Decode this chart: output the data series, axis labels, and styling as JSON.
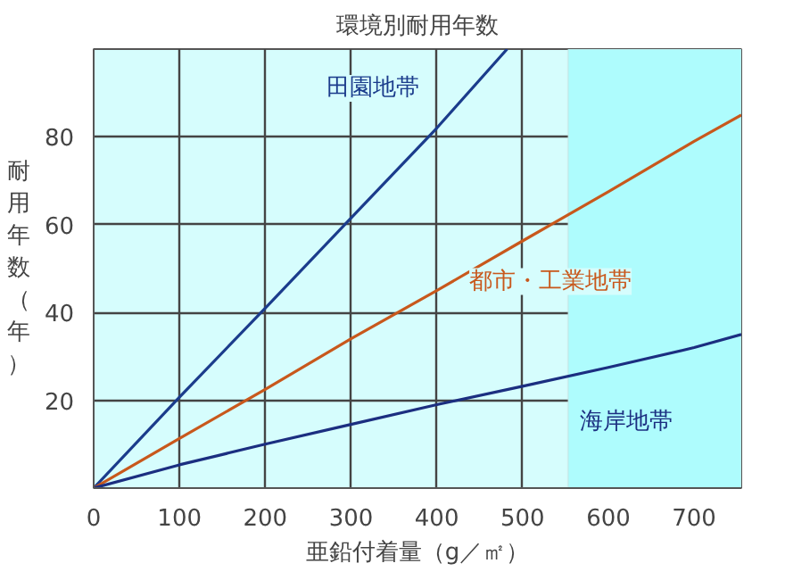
{
  "chart_data": {
    "type": "line",
    "title": "環境別耐用年数",
    "xlabel": "亜鉛付着量（g／㎡）",
    "ylabel": "耐用年数（年）",
    "x": [
      0,
      100,
      200,
      300,
      400,
      482,
      500,
      600,
      700,
      755
    ],
    "series": [
      {
        "name": "田園地帯",
        "color": "#1b3c8c",
        "values": [
          0,
          20.7,
          41,
          61.5,
          82,
          100,
          null,
          null,
          null,
          null
        ]
      },
      {
        "name": "都市・工業地帯",
        "color": "#c8581c",
        "values": [
          0,
          11.3,
          22.5,
          34,
          45,
          null,
          56.3,
          67.5,
          79,
          85
        ]
      },
      {
        "name": "海岸地帯",
        "color": "#1b2e80",
        "values": [
          0,
          5.3,
          10,
          14.5,
          19,
          null,
          23.2,
          27.5,
          32,
          35
        ]
      }
    ],
    "xlim": [
      0,
      755
    ],
    "ylim": [
      0,
      100
    ],
    "xticks": [
      0,
      100,
      200,
      300,
      400,
      500,
      600,
      700
    ],
    "yticks": [
      20,
      40,
      60,
      80
    ],
    "bands": [
      {
        "axis": "x",
        "from": 553,
        "to": 755,
        "color": "#aefcfd"
      }
    ],
    "grid": true,
    "marker": "none",
    "line_style": "solid"
  }
}
